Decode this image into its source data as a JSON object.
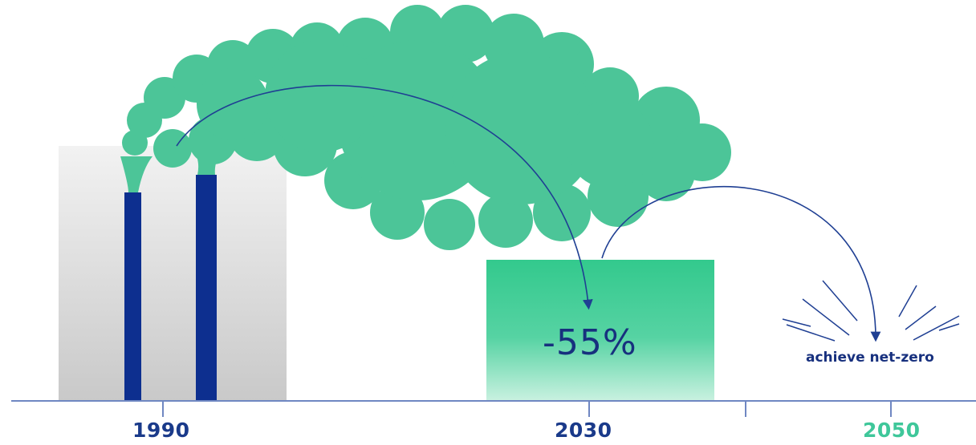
{
  "timeline": {
    "years": [
      {
        "label": "1990",
        "color": "#1a3a8a"
      },
      {
        "label": "2030",
        "color": "#1a3a8a"
      },
      {
        "label": "2050",
        "color": "#3fc79a"
      }
    ]
  },
  "target_2030": {
    "label": "-55%"
  },
  "target_2050": {
    "label": "achieve net-zero"
  },
  "colors": {
    "smoke": "#4cc598",
    "chimney": "#0d2f8f",
    "target_box": "#35c98f",
    "axis": "#6f87c2",
    "arrow": "#1f3f93",
    "building": "#d6d6d6"
  }
}
